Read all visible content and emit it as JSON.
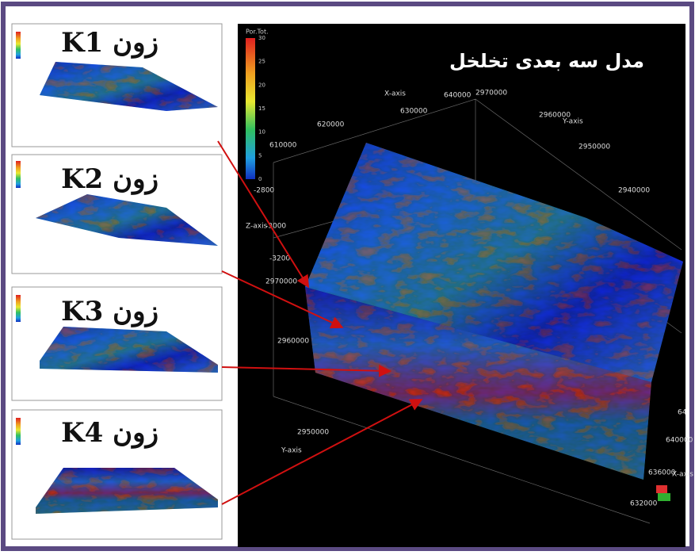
{
  "panels": [
    {
      "label": "زون K1"
    },
    {
      "label": "زون K2"
    },
    {
      "label": "زون K3"
    },
    {
      "label": "زون K4"
    }
  ],
  "main": {
    "title": "مدل سه بعدی تخلخل",
    "colorbar": {
      "title": "Por.Tot.",
      "ticks": [
        "30",
        "25",
        "20",
        "15",
        "10",
        "5",
        "0"
      ]
    },
    "x_label_top": "X-axis",
    "x_ticks_top": [
      "610000",
      "620000",
      "630000",
      "640000"
    ],
    "y_label_top": "Y-axis",
    "y_ticks_top": [
      "2970000",
      "2960000",
      "2950000",
      "2940000"
    ],
    "z_label": "Z-axis",
    "z_ticks": [
      "-2800",
      "-3000",
      "-3200"
    ],
    "y_label_left": "Y-axis",
    "y_ticks_left": [
      "2970000",
      "2960000",
      "2950000"
    ],
    "x_label_bottom": "X-axis",
    "x_ticks_bottom": [
      "632000",
      "636000",
      "640000",
      "64"
    ]
  }
}
